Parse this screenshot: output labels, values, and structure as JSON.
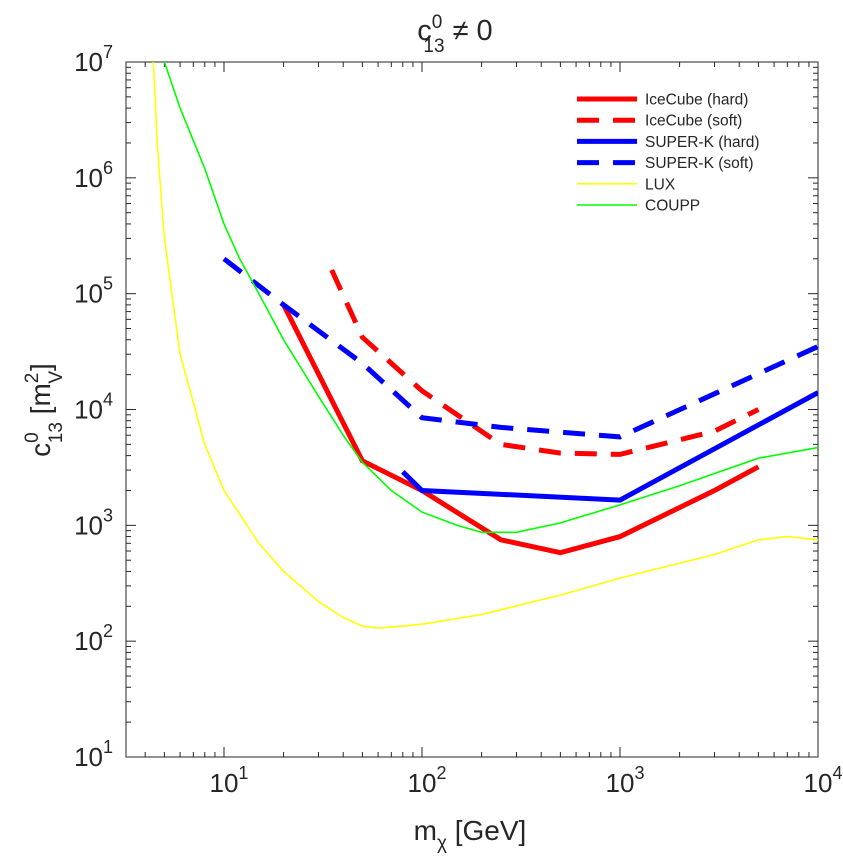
{
  "chart_data": {
    "type": "line",
    "title": {
      "base": "c",
      "sup": "0",
      "sub": "13",
      "rest": " ≠ 0"
    },
    "xlabel": {
      "base": "m",
      "sub": "χ",
      "rest": " [GeV]"
    },
    "ylabel": {
      "base": "c",
      "sup": "0",
      "sub": "13",
      "rest1": " [m",
      "sup2": "2",
      "sub2": "V",
      "rest2": "]"
    },
    "xscale": "log",
    "yscale": "log",
    "xlim": [
      3.2,
      10000
    ],
    "ylim": [
      10,
      10000000
    ],
    "grid": false,
    "legend_position": "top-right",
    "x_ticks": [
      {
        "value": 10,
        "base": "10",
        "exp": "1"
      },
      {
        "value": 100,
        "base": "10",
        "exp": "2"
      },
      {
        "value": 1000,
        "base": "10",
        "exp": "3"
      },
      {
        "value": 10000,
        "base": "10",
        "exp": "4"
      }
    ],
    "y_ticks": [
      {
        "value": 10,
        "base": "10",
        "exp": "1"
      },
      {
        "value": 100,
        "base": "10",
        "exp": "2"
      },
      {
        "value": 1000,
        "base": "10",
        "exp": "3"
      },
      {
        "value": 10000,
        "base": "10",
        "exp": "4"
      },
      {
        "value": 100000,
        "base": "10",
        "exp": "5"
      },
      {
        "value": 1000000,
        "base": "10",
        "exp": "6"
      },
      {
        "value": 10000000,
        "base": "10",
        "exp": "7"
      }
    ],
    "series": [
      {
        "name": "IceCube (hard)",
        "color": "#ff0000",
        "style": "solid",
        "width": "thick",
        "x": [
          20,
          50,
          100,
          250,
          500,
          1000,
          3000,
          5000
        ],
        "y": [
          80000,
          3600,
          2000,
          750,
          580,
          800,
          2000,
          3200
        ]
      },
      {
        "name": "IceCube (soft)",
        "color": "#ff0000",
        "style": "dashed",
        "width": "thick",
        "x": [
          35,
          50,
          100,
          250,
          500,
          1000,
          3000,
          5000
        ],
        "y": [
          160000,
          42000,
          14500,
          5000,
          4200,
          4100,
          6500,
          10000
        ]
      },
      {
        "name": "SUPER-K (hard)",
        "color": "#0000ff",
        "style": "solid",
        "width": "thick",
        "x": [
          80,
          100,
          1000,
          10000
        ],
        "y": [
          2900,
          2000,
          1650,
          14000
        ]
      },
      {
        "name": "SUPER-K (soft)",
        "color": "#0000ff",
        "style": "dashed",
        "width": "thick",
        "x": [
          10,
          20,
          50,
          100,
          250,
          1000,
          10000
        ],
        "y": [
          200000,
          80000,
          25000,
          8500,
          7000,
          5800,
          35000
        ]
      },
      {
        "name": "LUX",
        "color": "#ffff00",
        "style": "solid",
        "width": "thin",
        "x": [
          4.4,
          4.6,
          5,
          6,
          8,
          10,
          15,
          20,
          30,
          40,
          50,
          60,
          80,
          100,
          200,
          500,
          1000,
          3000,
          5000,
          7000,
          10000
        ],
        "y": [
          10000000,
          2000000,
          300000,
          30000,
          5000,
          2000,
          700,
          400,
          220,
          160,
          135,
          130,
          135,
          140,
          170,
          250,
          350,
          560,
          750,
          800,
          750
        ]
      },
      {
        "name": "COUPP",
        "color": "#00ff00",
        "style": "solid",
        "width": "thin",
        "x": [
          5,
          6,
          8,
          10,
          12,
          15,
          20,
          30,
          40,
          50,
          70,
          100,
          150,
          200,
          300,
          500,
          1000,
          2000,
          3000,
          5000,
          10000
        ],
        "y": [
          10000000,
          4000000,
          1200000,
          400000,
          200000,
          100000,
          40000,
          13000,
          6000,
          3500,
          2000,
          1300,
          1000,
          870,
          870,
          1050,
          1500,
          2200,
          2800,
          3800,
          4700
        ]
      }
    ]
  }
}
